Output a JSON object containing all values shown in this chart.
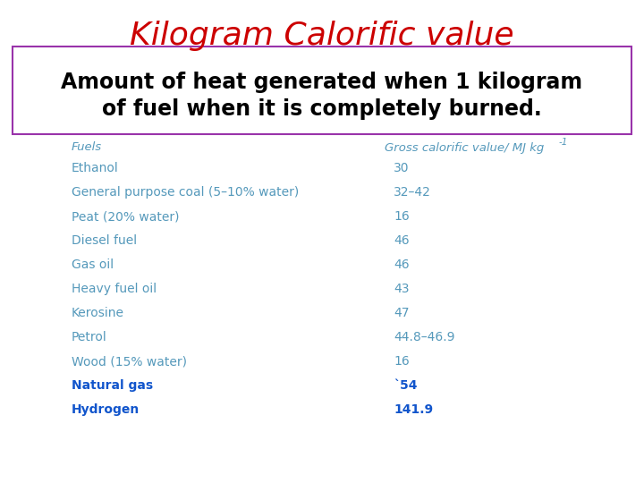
{
  "title": "Kilogram Calorific value",
  "title_color": "#cc0000",
  "subtitle_line1": "Amount of heat generated when 1 kilogram",
  "subtitle_line2": "of fuel when it is completely burned.",
  "subtitle_box_color": "#9933aa",
  "header_fuel": "Fuels",
  "header_value_main": "Gross calorific value/ MJ kg",
  "header_value_sup": "-1",
  "header_color": "#5599bb",
  "rows": [
    {
      "fuel": "Ethanol",
      "value": "30",
      "bold": false
    },
    {
      "fuel": "General purpose coal (5–10% water)",
      "value": "32–42",
      "bold": false
    },
    {
      "fuel": "Peat (20% water)",
      "value": "16",
      "bold": false
    },
    {
      "fuel": "Diesel fuel",
      "value": "46",
      "bold": false
    },
    {
      "fuel": "Gas oil",
      "value": "46",
      "bold": false
    },
    {
      "fuel": "Heavy fuel oil",
      "value": "43",
      "bold": false
    },
    {
      "fuel": "Kerosine",
      "value": "47",
      "bold": false
    },
    {
      "fuel": "Petrol",
      "value": "44.8–46.9",
      "bold": false
    },
    {
      "fuel": "Wood (15% water)",
      "value": "16",
      "bold": false
    },
    {
      "fuel": "Natural gas",
      "value": "`54",
      "bold": true
    },
    {
      "fuel": "Hydrogen",
      "value": "141.9",
      "bold": true
    }
  ],
  "row_color": "#5599bb",
  "bold_color": "#1155cc",
  "bg_color": "#ffffff",
  "fig_width": 7.2,
  "fig_height": 5.4,
  "dpi": 100
}
